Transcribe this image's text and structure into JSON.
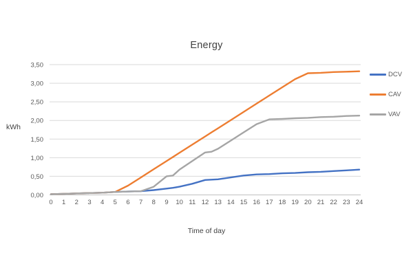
{
  "page": {
    "background": "#ffffff"
  },
  "chart_data": {
    "type": "line",
    "title": "Energy",
    "xlabel": "Time of day",
    "ylabel": "kWh",
    "xlim": [
      0,
      24
    ],
    "ylim": [
      0,
      3.5
    ],
    "grid": "horizontal",
    "legend_position": "right",
    "x_tick_labels": [
      "0",
      "1",
      "2",
      "3",
      "4",
      "5",
      "6",
      "7",
      "8",
      "9",
      "10",
      "11",
      "12",
      "13",
      "14",
      "15",
      "16",
      "17",
      "18",
      "19",
      "20",
      "21",
      "22",
      "23",
      "24"
    ],
    "y_tick_values": [
      0,
      0.5,
      1,
      1.5,
      2,
      2.5,
      3,
      3.5
    ],
    "y_tick_labels": [
      "0,00",
      "0,50",
      "1,00",
      "1,50",
      "2,00",
      "2,50",
      "3,00",
      "3,50"
    ],
    "x": [
      0,
      1,
      2,
      3,
      4,
      5,
      6,
      7,
      8,
      9,
      9.5,
      10,
      11,
      12,
      12.5,
      13,
      14,
      15,
      16,
      17,
      18,
      19,
      20,
      21,
      22,
      23,
      24
    ],
    "series": [
      {
        "name": "DCV",
        "color": "#4472C4",
        "values": [
          0.02,
          0.03,
          0.04,
          0.05,
          0.06,
          0.08,
          0.09,
          0.1,
          0.13,
          0.17,
          0.19,
          0.22,
          0.3,
          0.4,
          0.41,
          0.42,
          0.47,
          0.52,
          0.55,
          0.56,
          0.58,
          0.59,
          0.61,
          0.62,
          0.64,
          0.66,
          0.68
        ]
      },
      {
        "name": "CAV",
        "color": "#ED7D31",
        "values": [
          0.02,
          0.03,
          0.04,
          0.05,
          0.06,
          0.08,
          0.25,
          0.47,
          0.69,
          0.91,
          1.02,
          1.13,
          1.35,
          1.57,
          1.68,
          1.79,
          2.01,
          2.23,
          2.45,
          2.67,
          2.89,
          3.11,
          3.27,
          3.28,
          3.3,
          3.31,
          3.32
        ]
      },
      {
        "name": "VAV",
        "color": "#A5A5A5",
        "values": [
          0.02,
          0.03,
          0.04,
          0.05,
          0.06,
          0.08,
          0.09,
          0.1,
          0.22,
          0.5,
          0.52,
          0.68,
          0.91,
          1.14,
          1.16,
          1.24,
          1.46,
          1.68,
          1.9,
          2.03,
          2.04,
          2.06,
          2.07,
          2.09,
          2.1,
          2.12,
          2.13
        ]
      }
    ],
    "style": {
      "gridline_color": "#D9D9D9",
      "axis_line_color": "#BFBFBF",
      "tick_text_color": "#595959",
      "title_text_color": "#404040"
    }
  }
}
